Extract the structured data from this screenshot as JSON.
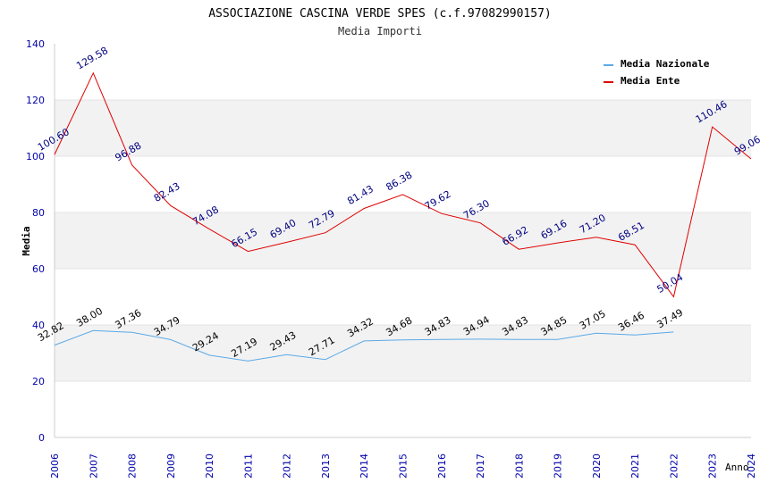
{
  "chart_data": {
    "type": "line",
    "title": "ASSOCIAZIONE CASCINA VERDE SPES (c.f.97082990157)",
    "subtitle": "Media Importi",
    "xlabel": "Anno",
    "ylabel": "Media",
    "ylim": [
      0,
      140
    ],
    "yticks": [
      0,
      20,
      40,
      60,
      80,
      100,
      120,
      140
    ],
    "x": [
      "2006",
      "2007",
      "2008",
      "2009",
      "2010",
      "2011",
      "2012",
      "2013",
      "2014",
      "2015",
      "2016",
      "2017",
      "2018",
      "2019",
      "2020",
      "2021",
      "2022",
      "2023",
      "2024"
    ],
    "legend_position": "top-right",
    "grid": "horizontal alternating bands",
    "series": [
      {
        "name": "Media Nazionale",
        "color": "#5aa9e6",
        "label_color": "#000000",
        "values": [
          32.82,
          38.0,
          37.36,
          34.79,
          29.24,
          27.19,
          29.43,
          27.71,
          34.32,
          34.68,
          34.83,
          34.94,
          34.83,
          34.85,
          37.05,
          36.46,
          37.49,
          null,
          null
        ],
        "labels": [
          "32.82",
          "38.00",
          "37.36",
          "34.79",
          "29.24",
          "27.19",
          "29.43",
          "27.71",
          "34.32",
          "34.68",
          "34.83",
          "34.94",
          "34.83",
          "34.85",
          "37.05",
          "36.46",
          "37.49",
          "",
          ""
        ]
      },
      {
        "name": "Media Ente",
        "color": "#e00000",
        "label_color": "#000080",
        "values": [
          100.6,
          129.58,
          96.88,
          82.43,
          74.08,
          66.15,
          69.4,
          72.79,
          81.43,
          86.38,
          79.62,
          76.3,
          66.92,
          69.16,
          71.2,
          68.51,
          50.04,
          110.46,
          99.06
        ],
        "labels": [
          "100.60",
          "129.58",
          "96.88",
          "82.43",
          "74.08",
          "66.15",
          "69.40",
          "72.79",
          "81.43",
          "86.38",
          "79.62",
          "76.30",
          "66.92",
          "69.16",
          "71.20",
          "68.51",
          "50.04",
          "110.46",
          "99.06"
        ]
      }
    ]
  },
  "colors": {
    "axis_tick_labels": "#0000aa",
    "band": "#f2f2f2",
    "axis_line": "#cccccc"
  }
}
